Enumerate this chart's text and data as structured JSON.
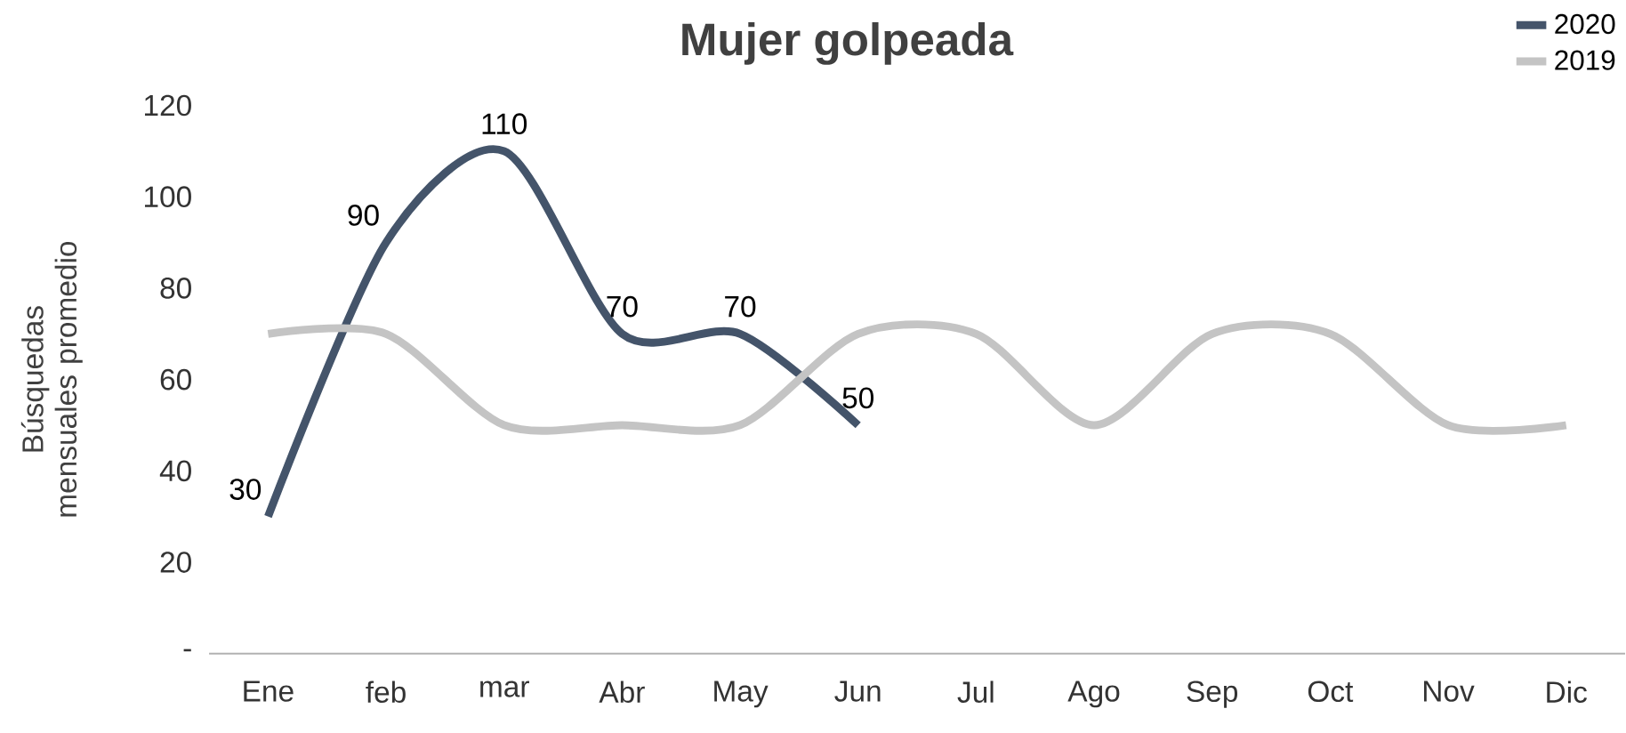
{
  "chart_data": {
    "type": "line",
    "title": "Mujer golpeada",
    "ylabel": "Búsquedas mensuales promedio",
    "categories": [
      "Ene",
      "feb",
      "mar",
      "Abr",
      "May",
      "Jun",
      "Jul",
      "Ago",
      "Sep",
      "Oct",
      "Nov",
      "Dic"
    ],
    "series": [
      {
        "name": "2020",
        "color": "#44546a",
        "values": [
          30,
          90,
          110,
          70,
          70,
          50,
          null,
          null,
          null,
          null,
          null,
          null
        ],
        "value_labels": [
          "30",
          "90",
          "110",
          "70",
          "70",
          "50",
          null,
          null,
          null,
          null,
          null,
          null
        ]
      },
      {
        "name": "2019",
        "color": "#c4c4c4",
        "values": [
          70,
          70,
          50,
          50,
          50,
          70,
          70,
          50,
          70,
          70,
          50,
          50
        ]
      }
    ],
    "ylim": [
      0,
      120
    ],
    "yticks": [
      {
        "value": 0,
        "label": "-"
      },
      20,
      40,
      60,
      80,
      100,
      120
    ],
    "legend": "top right",
    "grid": false,
    "marker": "none",
    "line_style": "solid"
  }
}
